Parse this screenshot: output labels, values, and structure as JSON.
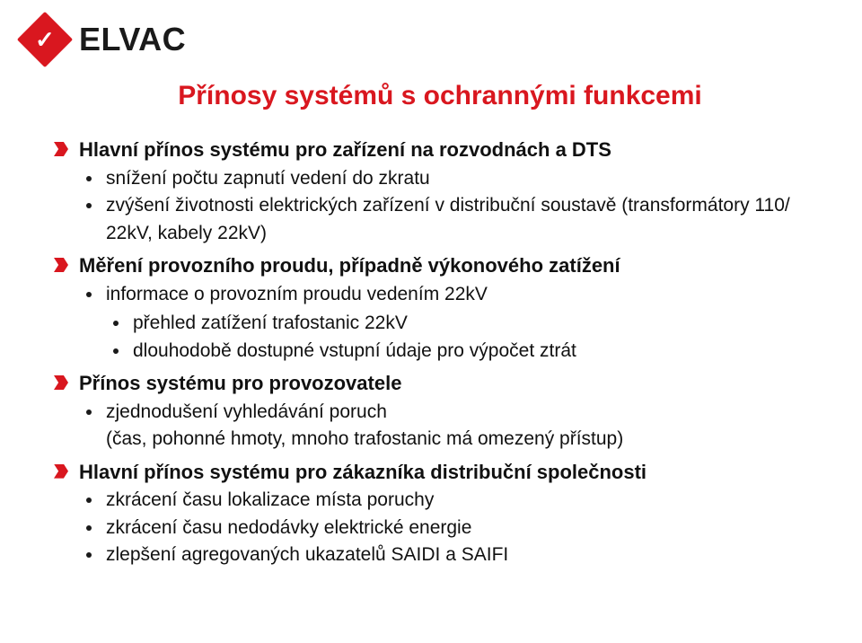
{
  "brand": {
    "name": "ELVAC",
    "mark_glyph": "✓",
    "mark_bg": "#d9171f",
    "text_color": "#1a1a1a"
  },
  "slide": {
    "title": "Přínosy systémů s ochrannými funkcemi",
    "title_color": "#d9171f",
    "bullet_color": "#d9171f",
    "items": [
      {
        "label": "Hlavní přínos systému pro zařízení na rozvodnách a DTS",
        "children": [
          {
            "label": "snížení počtu zapnutí vedení do zkratu"
          },
          {
            "label": "zvýšení životnosti elektrických zařízení v distribuční soustavě (transformátory 110/ 22kV, kabely 22kV)"
          }
        ]
      },
      {
        "label": "Měření provozního proudu, případně výkonového zatížení",
        "children": [
          {
            "label": "informace o provozním proudu vedením 22kV",
            "children": [
              {
                "label": "přehled zatížení trafostanic 22kV"
              },
              {
                "label": "dlouhodobě dostupné vstupní údaje pro výpočet ztrát"
              }
            ]
          }
        ]
      },
      {
        "label": "Přínos systému pro provozovatele",
        "children": [
          {
            "label": "zjednodušení vyhledávání poruch"
          },
          {
            "label": "(čas, pohonné hmoty, mnoho trafostanic má omezený přístup)",
            "no_bullet": true
          }
        ]
      },
      {
        "label": "Hlavní přínos systému pro zákazníka distribuční společnosti",
        "children": [
          {
            "label": "zkrácení času lokalizace místa poruchy"
          },
          {
            "label": "zkrácení času nedodávky elektrické energie"
          },
          {
            "label": "zlepšení agregovaných ukazatelů SAIDI a SAIFI"
          }
        ]
      }
    ]
  }
}
